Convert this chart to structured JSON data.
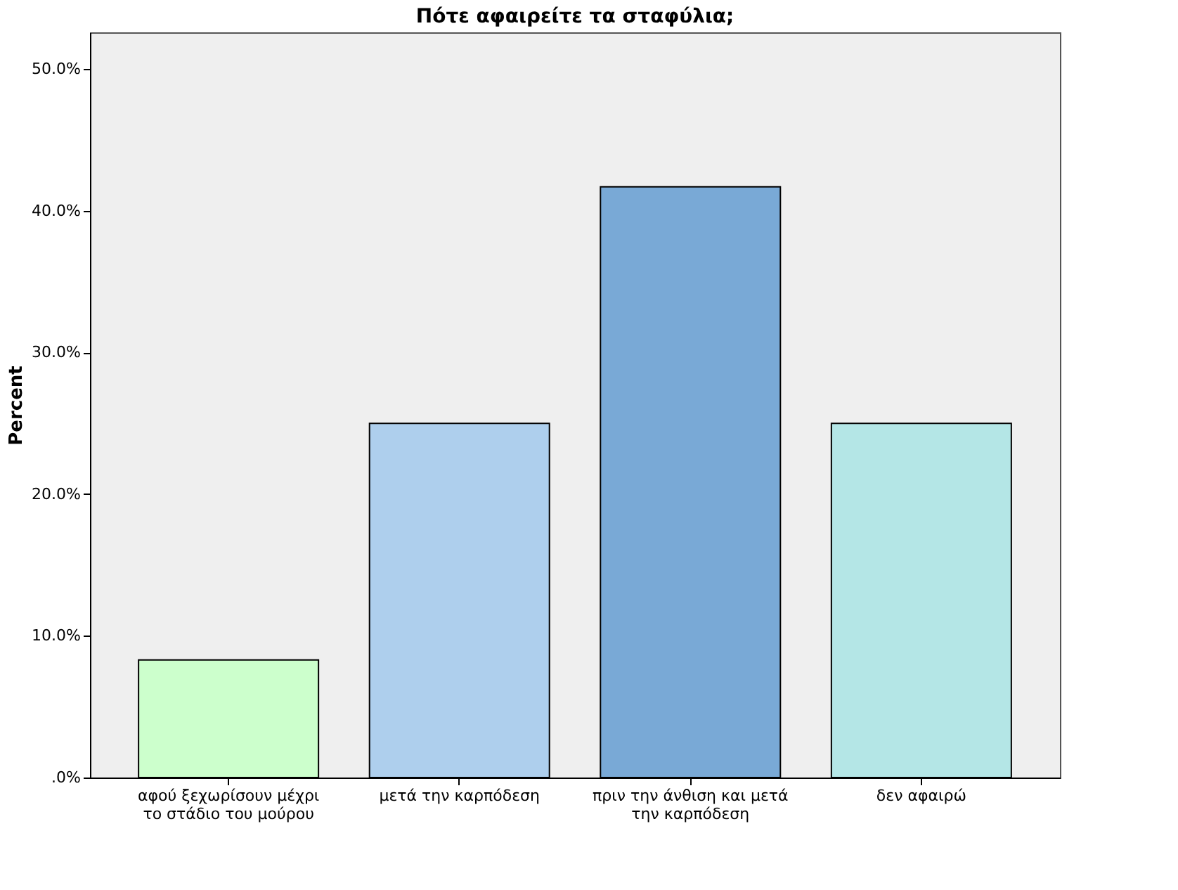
{
  "chart_data": {
    "type": "bar",
    "title": "Πότε αφαιρείτε τα σταφύλια;",
    "ylabel": "Percent",
    "categories": [
      "αφού ξεχωρίσουν μέχρι\nτο στάδιο του μούρου",
      "μετά την καρπόδεση",
      "πριν την άνθιση και μετά\nτην καρπόδεση",
      "δεν αφαιρώ"
    ],
    "values": [
      8.3,
      25.0,
      41.7,
      25.0
    ],
    "colors": [
      "#ccffcc",
      "#aecfed",
      "#79a9d6",
      "#b4e6e6"
    ],
    "ylim": [
      0,
      52.6
    ],
    "yticks": [
      {
        "value": 0,
        "label": ".0%"
      },
      {
        "value": 10,
        "label": "10.0%"
      },
      {
        "value": 20,
        "label": "20.0%"
      },
      {
        "value": 30,
        "label": "30.0%"
      },
      {
        "value": 40,
        "label": "40.0%"
      },
      {
        "value": 50,
        "label": "50.0%"
      }
    ],
    "grid": false,
    "legend": false
  }
}
